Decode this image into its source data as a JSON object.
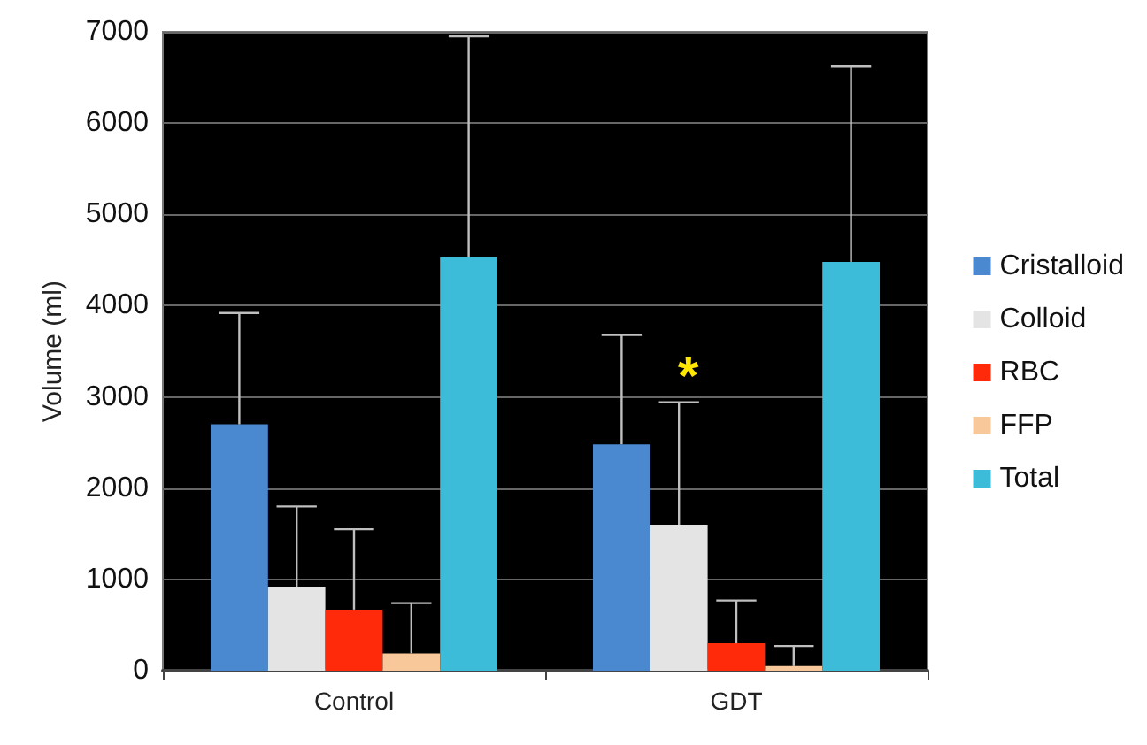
{
  "chart_data": {
    "type": "bar",
    "ylabel": "Volume (ml)",
    "categories": [
      "Control",
      "GDT"
    ],
    "series": [
      {
        "name": "Cristalloid",
        "color": "#4a88d0",
        "values": [
          2700,
          2480
        ],
        "errors": [
          [
            2700,
            3920
          ],
          [
            2480,
            3680
          ]
        ]
      },
      {
        "name": "Colloid",
        "color": "#e4e4e4",
        "values": [
          920,
          1600
        ],
        "errors": [
          [
            920,
            1800
          ],
          [
            1600,
            2940
          ]
        ]
      },
      {
        "name": "RBC",
        "color": "#ff2a0a",
        "values": [
          670,
          300
        ],
        "errors": [
          [
            670,
            1550
          ],
          [
            300,
            770
          ]
        ]
      },
      {
        "name": "FFP",
        "color": "#f8c89a",
        "values": [
          190,
          50
        ],
        "errors": [
          [
            190,
            740
          ],
          [
            50,
            270
          ]
        ]
      },
      {
        "name": "Total",
        "color": "#3cbcd8",
        "values": [
          4530,
          4480
        ],
        "errors": [
          [
            4530,
            6950
          ],
          [
            4480,
            6620
          ]
        ]
      }
    ],
    "ylim": [
      0,
      7000
    ],
    "yticks": [
      0,
      1000,
      2000,
      3000,
      4000,
      5000,
      6000,
      7000
    ],
    "grid": "y",
    "legend": "right",
    "annotations": [
      "*"
    ]
  }
}
